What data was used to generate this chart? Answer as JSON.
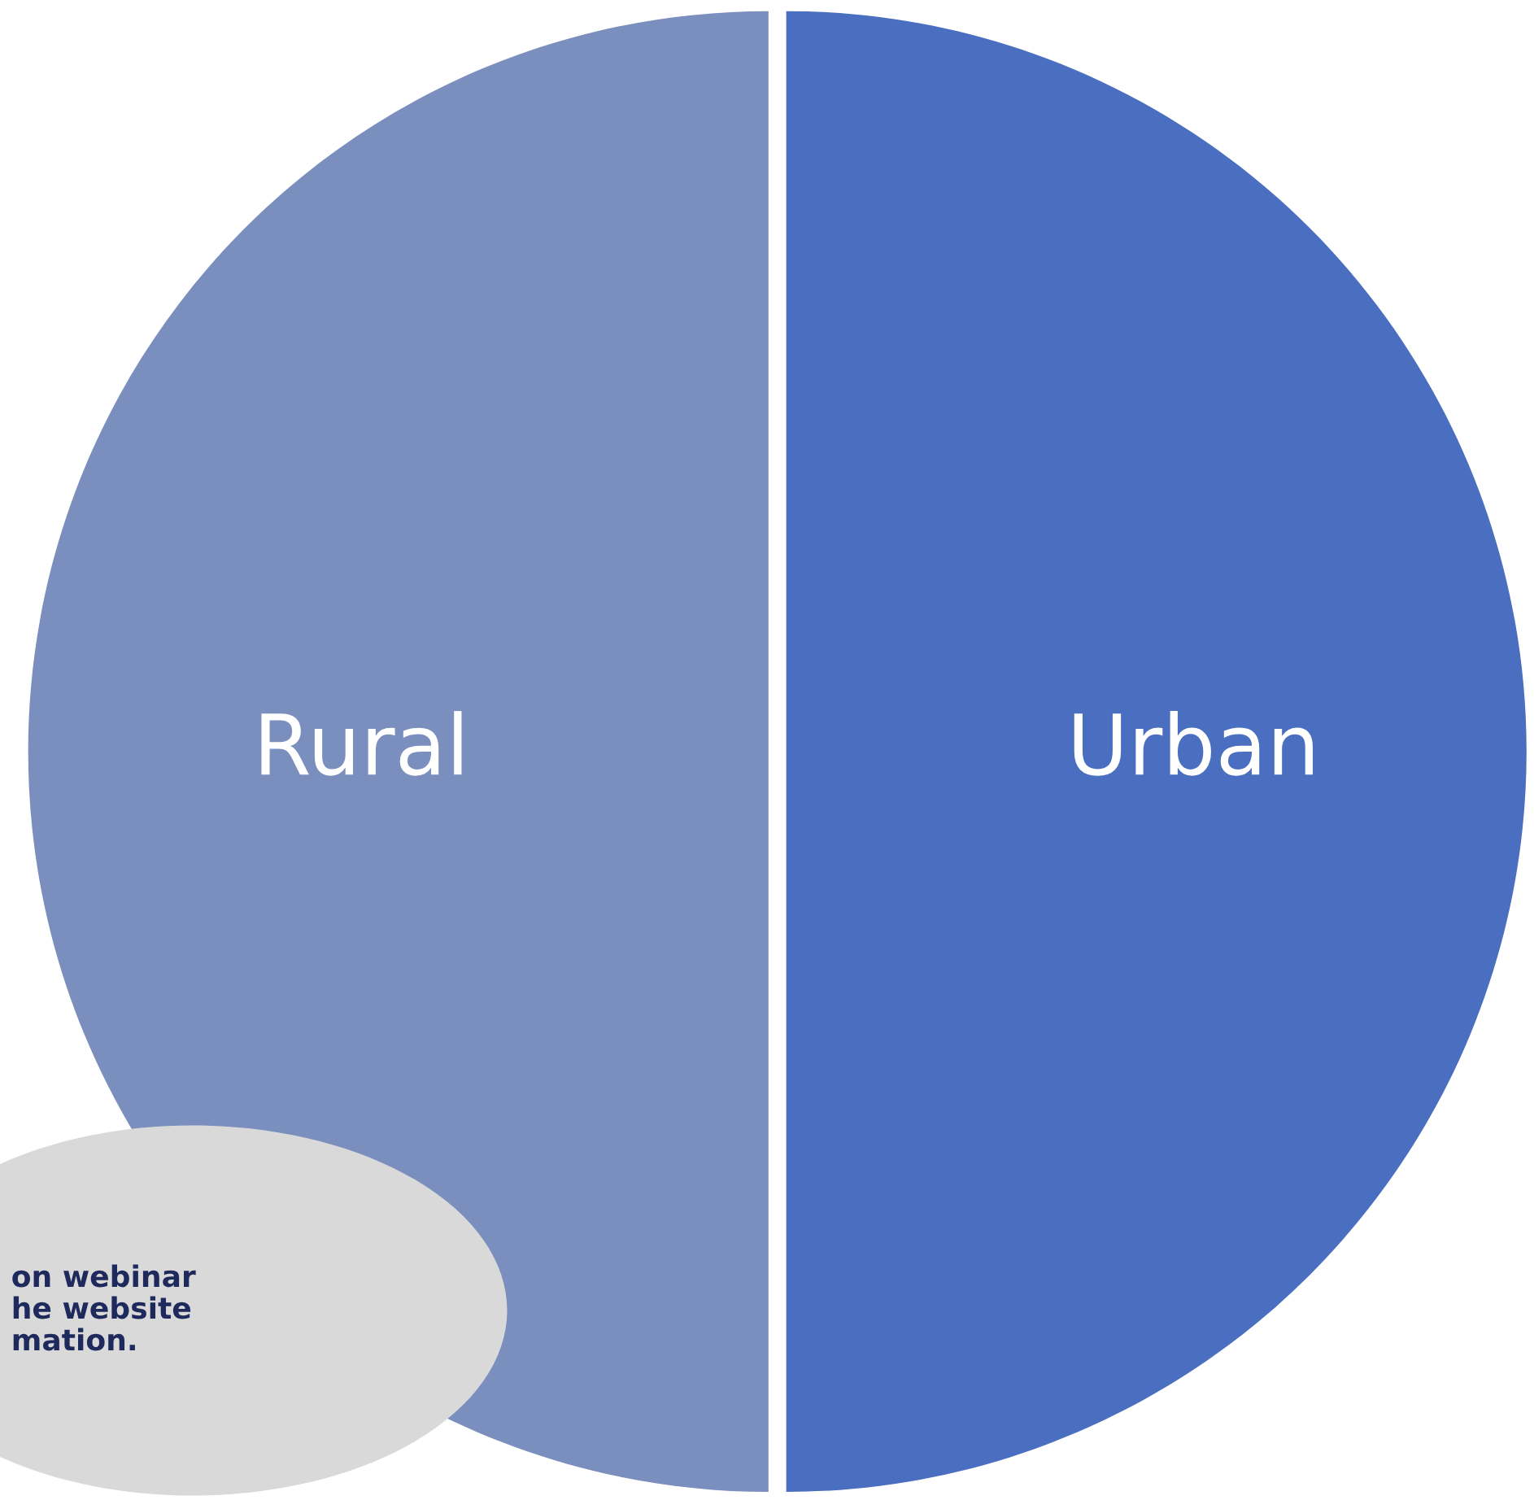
{
  "chart_data": {
    "type": "pie",
    "categories": [
      "Rural",
      "Urban"
    ],
    "values": [
      50,
      50
    ],
    "colors": [
      "#7a8fbe",
      "#4a6ec0"
    ],
    "annotations": [
      "on webinar\nhe website\nmation."
    ]
  }
}
